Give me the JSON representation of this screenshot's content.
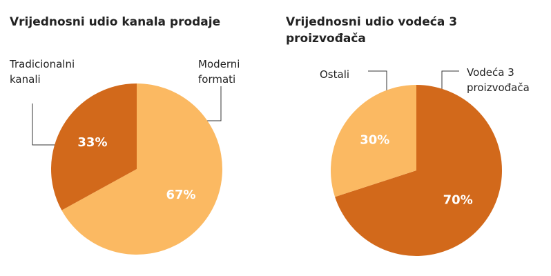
{
  "chart_data": [
    {
      "type": "pie",
      "title": "Vrijednosni udio kanala prodaje",
      "categories": [
        "Moderni formati",
        "Tradicionalni kanali"
      ],
      "values": [
        67,
        33
      ],
      "value_labels": [
        "67%",
        "33%"
      ],
      "colors": [
        "#fbb962",
        "#d2691b"
      ]
    },
    {
      "type": "pie",
      "title": "Vrijednosni udio vodeća 3 proizvođača",
      "categories": [
        "Vodeća 3 proizvođača",
        "Ostali"
      ],
      "values": [
        70,
        30
      ],
      "value_labels": [
        "70%",
        "30%"
      ],
      "colors": [
        "#d2691b",
        "#fbb962"
      ]
    }
  ]
}
